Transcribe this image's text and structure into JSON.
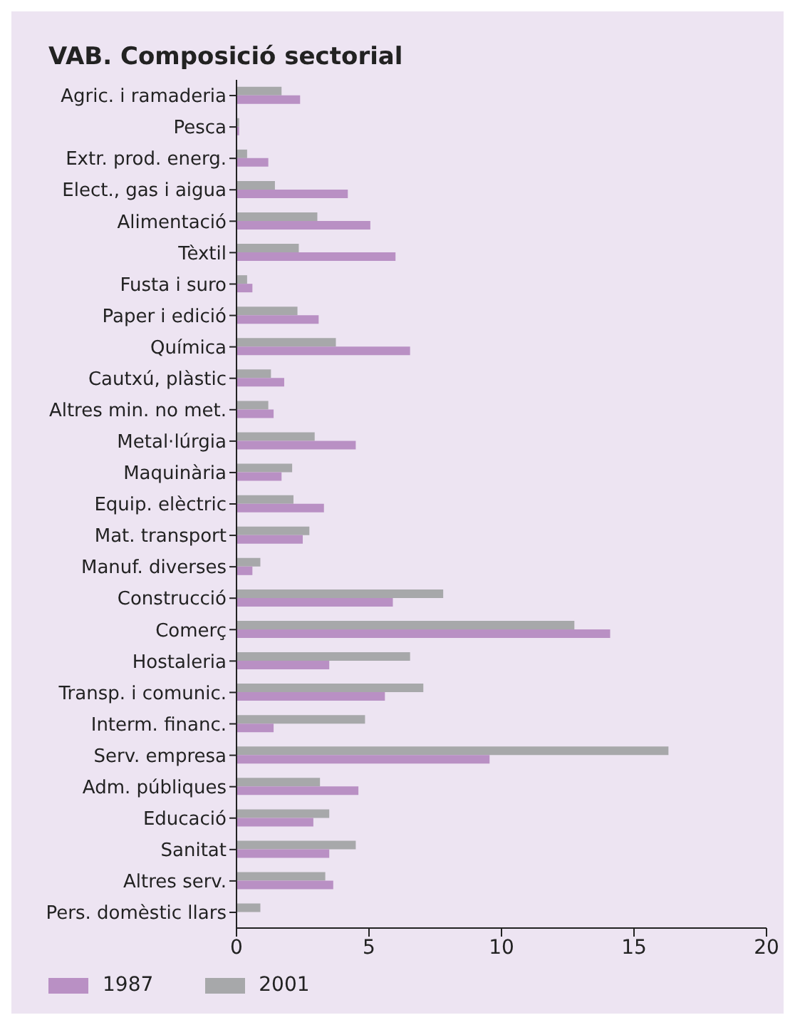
{
  "chart_data": {
    "type": "bar",
    "orientation": "horizontal",
    "title": "VAB. Composició sectorial",
    "categories": [
      "Agric. i ramaderia",
      "Pesca",
      "Extr. prod. energ.",
      "Elect., gas i aigua",
      "Alimentació",
      "Tèxtil",
      "Fusta i suro",
      "Paper i edició",
      "Química",
      "Cautxú, plàstic",
      "Altres min. no met.",
      "Metal·lúrgia",
      "Maquinària",
      "Equip. elèctric",
      "Mat. transport",
      "Manuf. diverses",
      "Construcció",
      "Comerç",
      "Hostaleria",
      "Transp. i comunic.",
      "Interm. financ.",
      "Serv. empresa",
      "Adm. públiques",
      "Educació",
      "Sanitat",
      "Altres serv.",
      "Pers. domèstic llars"
    ],
    "series": [
      {
        "name": "1987",
        "color": "#b990c4",
        "values": [
          2.4,
          0.1,
          1.2,
          4.2,
          5.05,
          6.0,
          0.6,
          3.1,
          6.55,
          1.8,
          1.4,
          4.5,
          1.7,
          3.3,
          2.5,
          0.6,
          5.9,
          14.1,
          3.5,
          5.6,
          1.4,
          9.55,
          4.6,
          2.9,
          3.5,
          3.65,
          0
        ]
      },
      {
        "name": "2001",
        "color": "#a7a8aa",
        "values": [
          1.7,
          0.1,
          0.4,
          1.45,
          3.05,
          2.35,
          0.4,
          2.3,
          3.75,
          1.3,
          1.2,
          2.95,
          2.1,
          2.15,
          2.75,
          0.9,
          7.8,
          12.75,
          6.55,
          7.05,
          4.85,
          16.3,
          3.15,
          3.5,
          4.5,
          3.35,
          0.9
        ]
      }
    ],
    "xlim": [
      0,
      20
    ],
    "xticks": [
      0,
      5,
      10,
      15,
      20
    ],
    "grid": false,
    "legend": "bottom left"
  }
}
